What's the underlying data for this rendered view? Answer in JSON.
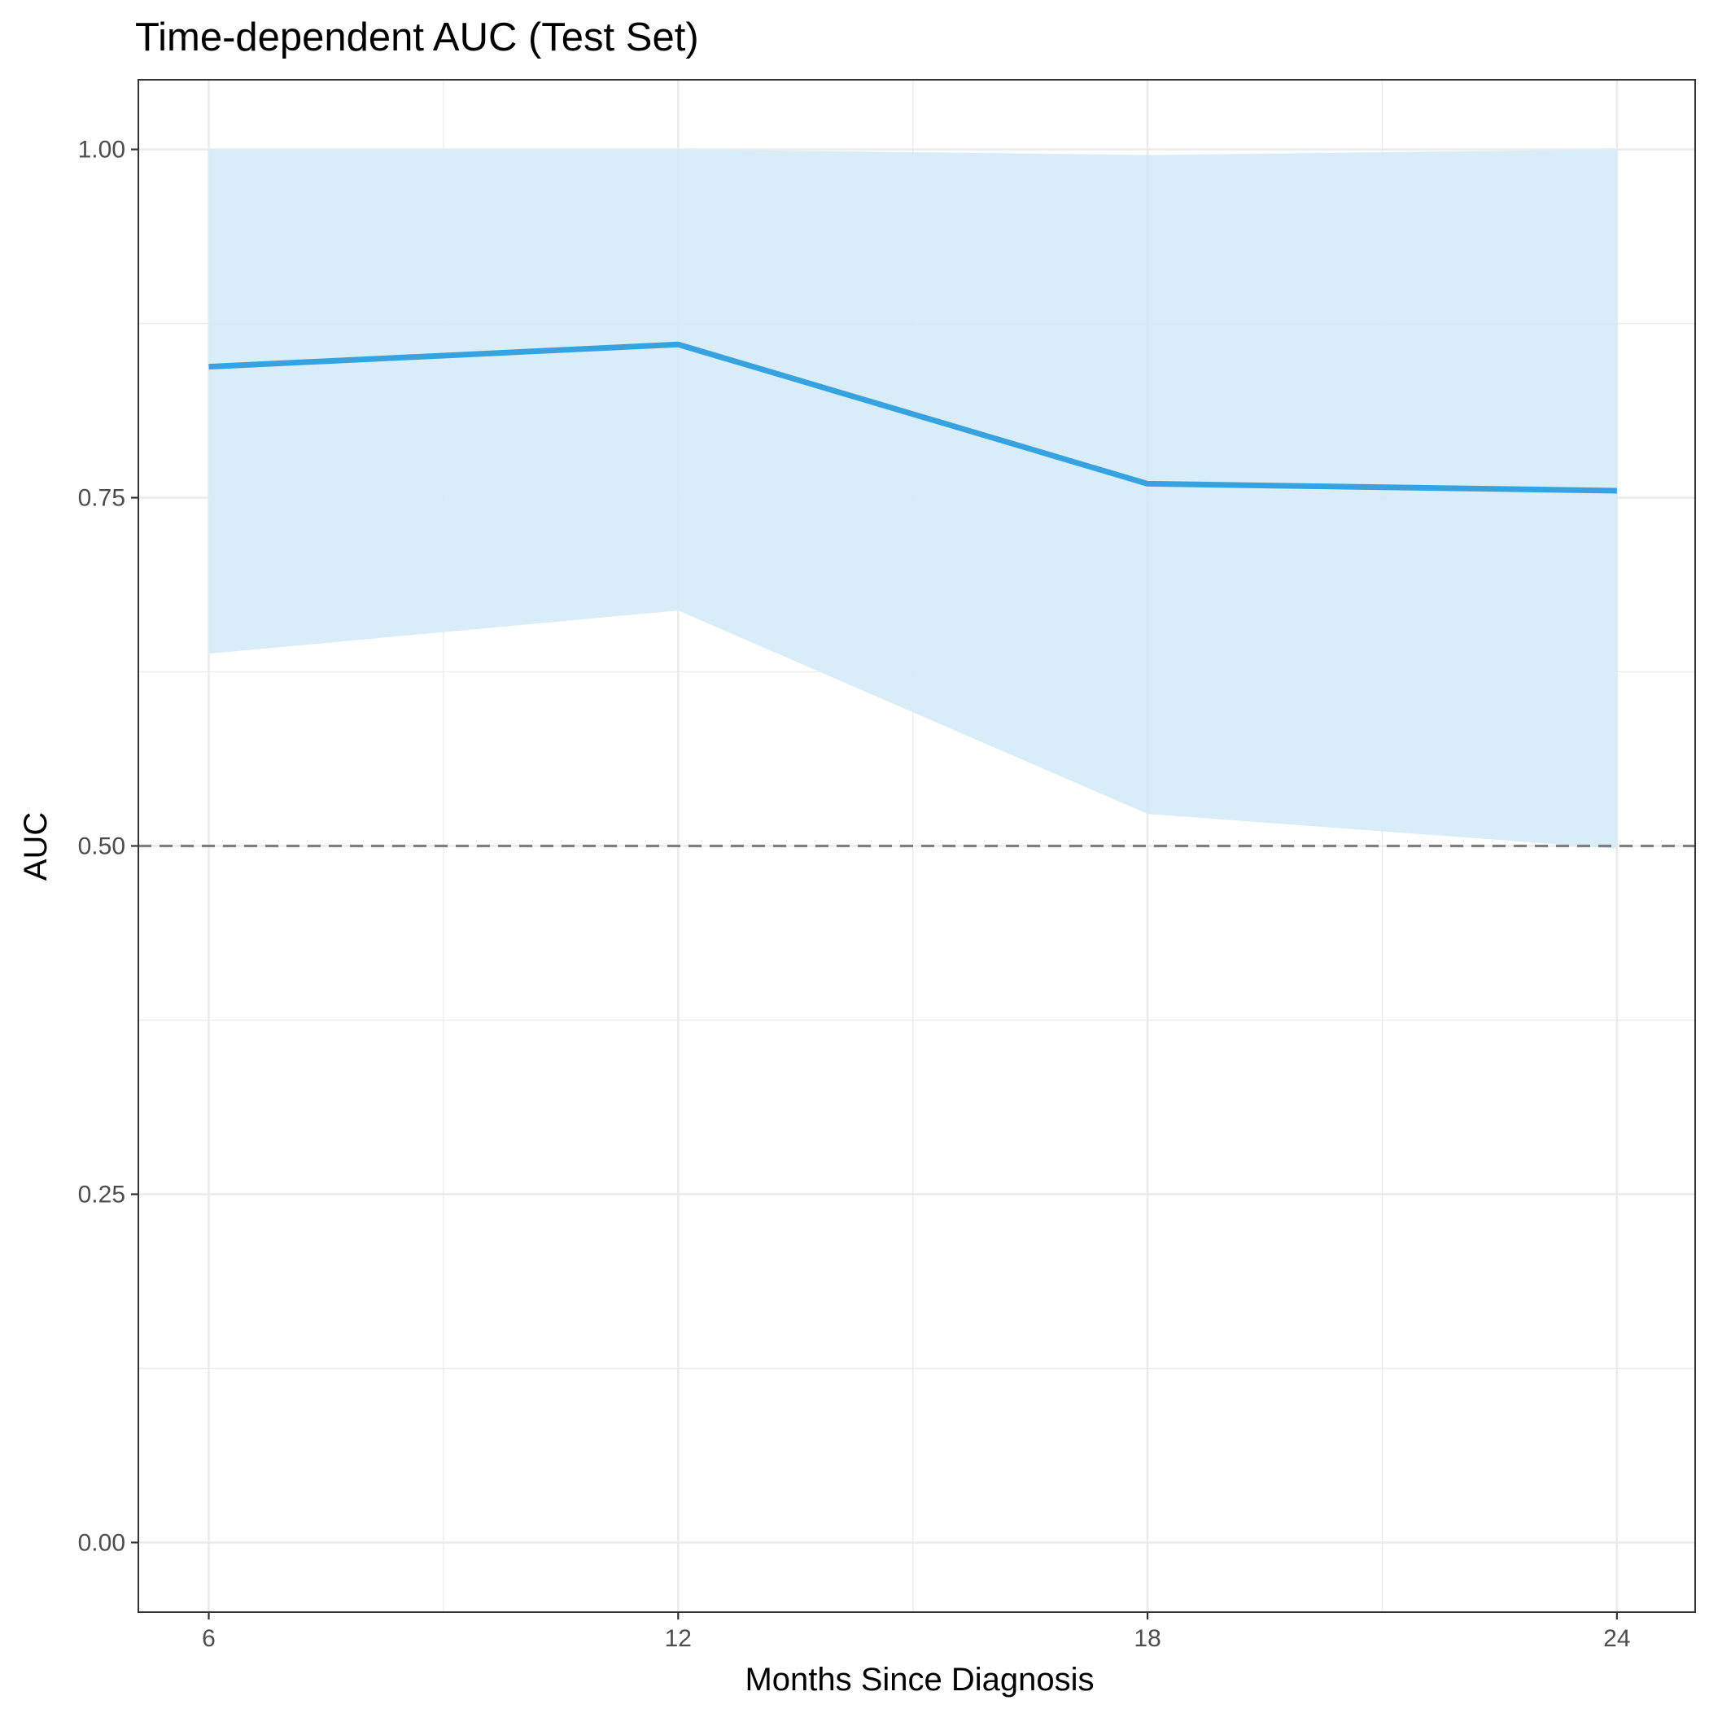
{
  "chart_data": {
    "type": "line",
    "title": "Time-dependent AUC (Test Set)",
    "xlabel": "Months Since Diagnosis",
    "ylabel": "AUC",
    "x": [
      6,
      12,
      18,
      24
    ],
    "series": [
      {
        "values": [
          0.844,
          0.86,
          0.76,
          0.755
        ],
        "ribbon_lower": [
          0.638,
          0.669,
          0.523,
          0.498
        ],
        "ribbon_upper": [
          1.0,
          1.0,
          0.996,
          1.0
        ]
      }
    ],
    "reference_line": {
      "y": 0.5,
      "style": "dashed",
      "color": "#7f7f7f"
    },
    "xlim": [
      5.1,
      25.0
    ],
    "ylim": [
      -0.05,
      1.05
    ],
    "xticks": [
      6,
      12,
      18,
      24
    ],
    "xtick_labels": [
      "6",
      "12",
      "18",
      "24"
    ],
    "yticks": [
      0,
      0.25,
      0.5,
      0.75,
      1.0
    ],
    "ytick_labels": [
      "0.00",
      "0.25",
      "0.50",
      "0.75",
      "1.00"
    ],
    "grid": true,
    "legend": "none",
    "colors": {
      "line": "#36a2e0",
      "ribbon": "#d5ebf7",
      "grid": "#ebebeb",
      "panel_border": "#333333"
    }
  }
}
